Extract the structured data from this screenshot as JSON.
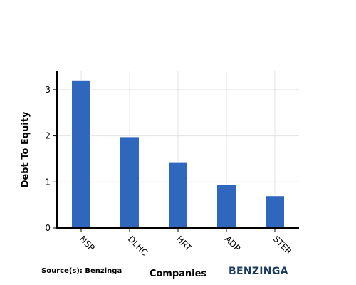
{
  "chart_data": {
    "type": "bar",
    "categories": [
      "NSP",
      "DLHC",
      "HRT",
      "ADP",
      "STER"
    ],
    "values": [
      3.21,
      1.98,
      1.42,
      0.95,
      0.7
    ],
    "xlabel": "Companies",
    "ylabel": "Debt To Equity",
    "ylim": [
      0,
      3.4
    ],
    "yticks": [
      0,
      1,
      2,
      3
    ],
    "grid": true,
    "bar_color": "#3067be"
  },
  "footer": {
    "source": "Source(s): Benzinga",
    "brand": "BENZINGA"
  }
}
